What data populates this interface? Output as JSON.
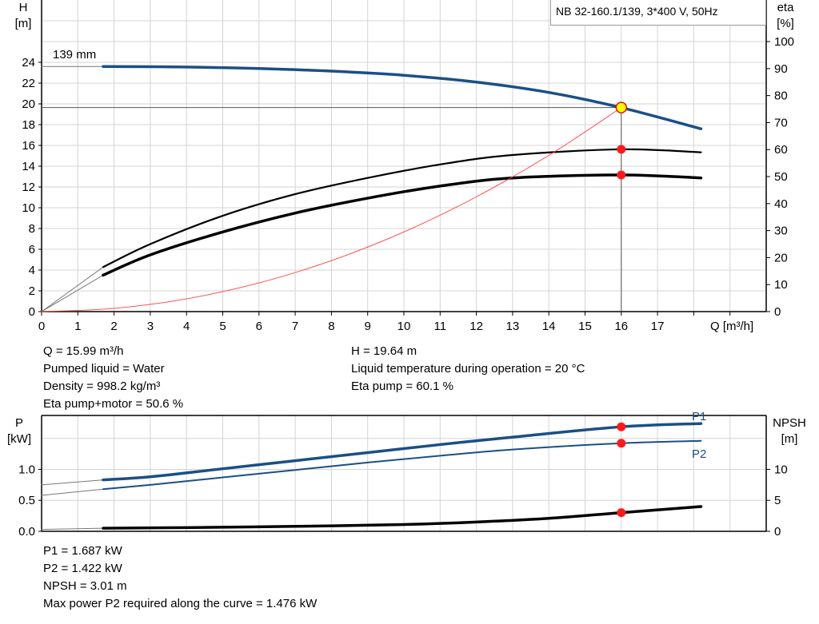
{
  "chart_data": [
    {
      "type": "line",
      "title": "NB 32-160.1/139, 3*400 V, 50Hz",
      "impeller_label": "139 mm",
      "xlabel": "Q [m³/h]",
      "ylabel_left": {
        "name": "H",
        "unit": "[m]"
      },
      "ylabel_right": {
        "name": "eta",
        "unit": "[%]"
      },
      "xlim": [
        0,
        20
      ],
      "ylim_left": [
        0,
        30
      ],
      "ylim_right": [
        0,
        115.4
      ],
      "x_ticks": [
        0,
        1,
        2,
        3,
        4,
        5,
        6,
        7,
        8,
        9,
        10,
        11,
        12,
        13,
        14,
        15,
        16,
        17
      ],
      "y_ticks_left": [
        0,
        2,
        4,
        6,
        8,
        10,
        12,
        14,
        16,
        18,
        20,
        22,
        24
      ],
      "y_ticks_right": [
        0,
        10,
        20,
        30,
        40,
        50,
        60,
        70,
        80,
        90,
        100
      ],
      "grid": true,
      "colors": {
        "head": "#1a4f86",
        "eta": "#000000",
        "system": "#ff4040",
        "point": "#ff1a1a",
        "duty": "#ffff00"
      },
      "series": [
        {
          "key": "H",
          "axis": "left",
          "x": [
            0,
            1.7
          ],
          "y": [
            23.6,
            23.6
          ],
          "style": "extension"
        },
        {
          "key": "H",
          "axis": "left",
          "x": [
            1.7,
            4,
            6,
            8,
            10,
            12,
            14,
            16,
            18.2
          ],
          "y": [
            23.6,
            23.55,
            23.4,
            23.15,
            22.75,
            22.1,
            21.1,
            19.64,
            17.6
          ],
          "style": "head"
        },
        {
          "key": "eta_pump",
          "axis": "right",
          "x": [
            0,
            1.7
          ],
          "y": [
            0,
            16.5
          ],
          "style": "extension"
        },
        {
          "key": "eta_pump",
          "axis": "right",
          "x": [
            1.7,
            3,
            5,
            7,
            9,
            11,
            13,
            16,
            18.2
          ],
          "y": [
            16.5,
            25,
            35.5,
            43.5,
            49.5,
            54.5,
            58,
            60.1,
            59
          ],
          "style": "eta"
        },
        {
          "key": "eta_pump_motor",
          "axis": "right",
          "x": [
            0,
            1.7
          ],
          "y": [
            0,
            13.5
          ],
          "style": "extension"
        },
        {
          "key": "eta_pump_motor",
          "axis": "right",
          "x": [
            1.7,
            3,
            5,
            7,
            9,
            11,
            13,
            16,
            18.2
          ],
          "y": [
            13.5,
            21,
            29.5,
            36.5,
            42,
            46.5,
            49.5,
            50.6,
            49.5
          ],
          "style": "eta_thick"
        },
        {
          "key": "system",
          "axis": "left",
          "x": [
            0,
            2,
            4,
            6,
            8,
            10,
            12,
            14,
            16
          ],
          "y": [
            0,
            0.31,
            1.23,
            2.76,
            4.91,
            7.67,
            11.05,
            15.04,
            19.64
          ],
          "style": "system"
        }
      ],
      "duty_point": {
        "q": 16,
        "h": 19.64
      },
      "markers": [
        {
          "axis": "right",
          "x": 16,
          "y": 60.1
        },
        {
          "axis": "right",
          "x": 16,
          "y": 50.6
        }
      ]
    },
    {
      "type": "line",
      "xlim": [
        0,
        20
      ],
      "ylabel_left": {
        "name": "P",
        "unit": "[kW]"
      },
      "ylabel_right": {
        "name": "NPSH",
        "unit": "[m]"
      },
      "ylim_left": [
        0,
        1.87
      ],
      "ylim_right": [
        0,
        18.7
      ],
      "y_ticks_left": [
        "0.0",
        "0.5",
        "1.0"
      ],
      "y_ticks_right": [
        "0",
        "5",
        "10"
      ],
      "grid": true,
      "series": [
        {
          "key": "P1",
          "name": "P1",
          "axis": "left",
          "x": [
            0,
            1.7
          ],
          "y": [
            0.75,
            0.83
          ],
          "style": "extension"
        },
        {
          "key": "P1",
          "name": "P1",
          "axis": "left",
          "x": [
            1.7,
            3,
            5,
            7,
            9,
            11,
            13,
            16,
            18.2
          ],
          "y": [
            0.83,
            0.88,
            1.01,
            1.14,
            1.27,
            1.4,
            1.52,
            1.687,
            1.74
          ],
          "style": "p1"
        },
        {
          "key": "P2",
          "name": "P2",
          "axis": "left",
          "x": [
            0,
            1.7
          ],
          "y": [
            0.58,
            0.68
          ],
          "style": "extension"
        },
        {
          "key": "P2",
          "name": "P2",
          "axis": "left",
          "x": [
            1.7,
            3,
            5,
            7,
            9,
            11,
            13,
            16,
            18.2
          ],
          "y": [
            0.68,
            0.75,
            0.87,
            0.99,
            1.11,
            1.22,
            1.32,
            1.422,
            1.46
          ],
          "style": "p2"
        },
        {
          "key": "NPSH",
          "axis": "right",
          "x": [
            0,
            1.7
          ],
          "y": [
            0.3,
            0.5
          ],
          "style": "extension"
        },
        {
          "key": "NPSH",
          "axis": "right",
          "x": [
            1.7,
            4,
            7,
            10,
            12,
            14,
            16,
            18.2
          ],
          "y": [
            0.5,
            0.6,
            0.8,
            1.1,
            1.5,
            2.1,
            3.01,
            4.0
          ],
          "style": "npsh"
        }
      ],
      "markers": [
        {
          "axis": "left",
          "x": 16,
          "y": 1.687
        },
        {
          "axis": "left",
          "x": 16,
          "y": 1.422
        },
        {
          "axis": "right",
          "x": 16,
          "y": 3.01
        }
      ]
    }
  ],
  "readouts": {
    "q": "Q = 15.99 m³/h",
    "liquid": "Pumped liquid = Water",
    "density": "Density = 998.2 kg/m³",
    "eta_pm": "Eta pump+motor = 50.6 %",
    "h": "H = 19.64 m",
    "temp": "Liquid temperature during operation = 20 °C",
    "eta_p": "Eta pump = 60.1 %",
    "p1": "P1 = 1.687 kW",
    "p2": "P2 = 1.422 kW",
    "npsh": "NPSH = 3.01 m",
    "max_p2": "Max power P2 required along the curve = 1.476 kW"
  }
}
